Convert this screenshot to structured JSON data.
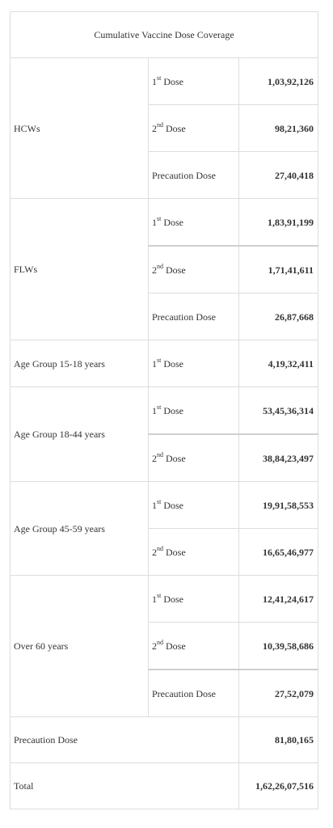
{
  "table": {
    "title": "Cumulative Vaccine Dose Coverage",
    "groups": [
      {
        "label": "HCWs",
        "rows": [
          {
            "dose_main": "1",
            "dose_sup": "st",
            "dose_rest": " Dose",
            "value": "1,03,92,126"
          },
          {
            "dose_main": "2",
            "dose_sup": "nd",
            "dose_rest": " Dose",
            "value": "98,21,360"
          },
          {
            "dose_main": "Precaution Dose",
            "dose_sup": "",
            "dose_rest": "",
            "value": "27,40,418"
          }
        ]
      },
      {
        "label": "FLWs",
        "rows": [
          {
            "dose_main": "1",
            "dose_sup": "st",
            "dose_rest": " Dose",
            "value": "1,83,91,199"
          },
          {
            "dose_main": "2",
            "dose_sup": "nd",
            "dose_rest": " Dose",
            "value": "1,71,41,611"
          },
          {
            "dose_main": "Precaution Dose",
            "dose_sup": "",
            "dose_rest": "",
            "value": "26,87,668"
          }
        ]
      },
      {
        "label": "Age Group 15-18 years",
        "rows": [
          {
            "dose_main": "1",
            "dose_sup": "st",
            "dose_rest": " Dose",
            "value": "4,19,32,411"
          }
        ]
      },
      {
        "label": "Age Group 18-44 years",
        "rows": [
          {
            "dose_main": "1",
            "dose_sup": "st",
            "dose_rest": " Dose",
            "value": "53,45,36,314"
          },
          {
            "dose_main": "2",
            "dose_sup": "nd",
            "dose_rest": " Dose",
            "value": "38,84,23,497"
          }
        ]
      },
      {
        "label": "Age Group 45-59 years",
        "rows": [
          {
            "dose_main": "1",
            "dose_sup": "st",
            "dose_rest": " Dose",
            "value": "19,91,58,553"
          },
          {
            "dose_main": "2",
            "dose_sup": "nd",
            "dose_rest": " Dose",
            "value": "16,65,46,977"
          }
        ]
      },
      {
        "label": "Over 60 years",
        "rows": [
          {
            "dose_main": "1",
            "dose_sup": "st",
            "dose_rest": " Dose",
            "value": "12,41,24,617"
          },
          {
            "dose_main": "2",
            "dose_sup": "nd",
            "dose_rest": " Dose",
            "value": "10,39,58,686"
          },
          {
            "dose_main": "Precaution Dose",
            "dose_sup": "",
            "dose_rest": "",
            "value": "27,52,079"
          }
        ]
      }
    ],
    "precaution_total": {
      "label": "Precaution Dose",
      "value": "81,80,165"
    },
    "total": {
      "label": "Total",
      "value": "1,62,26,07,516"
    }
  }
}
